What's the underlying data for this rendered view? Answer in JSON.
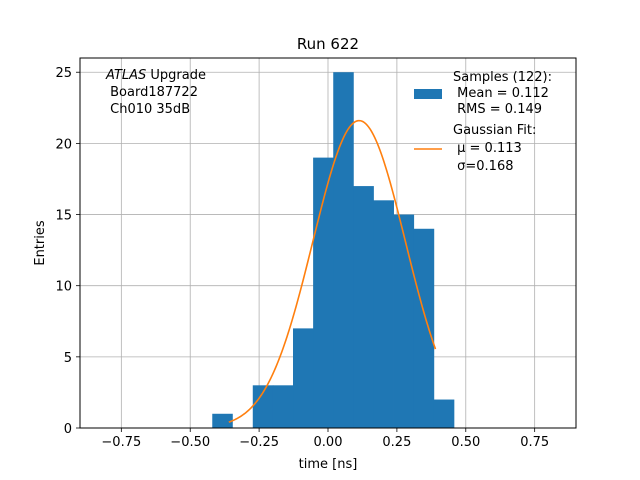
{
  "chart_data": {
    "type": "bar",
    "title": "Run 622",
    "xlabel": "time [ns]",
    "ylabel": "Entries",
    "xlim": [
      -0.9,
      0.9
    ],
    "ylim": [
      0,
      26
    ],
    "grid": true,
    "x_ticks": [
      -0.75,
      -0.5,
      -0.25,
      0.0,
      0.25,
      0.5,
      0.75
    ],
    "x_tick_labels": [
      "−0.75",
      "−0.50",
      "−0.25",
      "0.00",
      "0.25",
      "0.50",
      "0.75"
    ],
    "y_ticks": [
      0,
      5,
      10,
      15,
      20,
      25
    ],
    "y_tick_labels": [
      "0",
      "5",
      "10",
      "15",
      "20",
      "25"
    ],
    "bin_width": 0.073,
    "bins": [
      {
        "left": -0.42,
        "value": 1
      },
      {
        "left": -0.273,
        "value": 3
      },
      {
        "left": -0.2,
        "value": 3
      },
      {
        "left": -0.127,
        "value": 7
      },
      {
        "left": -0.054,
        "value": 19
      },
      {
        "left": 0.019,
        "value": 25
      },
      {
        "left": 0.092,
        "value": 17
      },
      {
        "left": 0.165,
        "value": 16
      },
      {
        "left": 0.238,
        "value": 15
      },
      {
        "left": 0.311,
        "value": 14
      },
      {
        "left": 0.384,
        "value": 2
      }
    ],
    "fit": {
      "amplitude": 21.6,
      "mu": 0.113,
      "sigma": 0.168,
      "x_range": [
        -0.36,
        0.39
      ]
    },
    "colors": {
      "histogram": "#1f77b4",
      "fit": "#ff7f0e",
      "grid": "#b0b0b0"
    },
    "legend_position": "top-right",
    "legend": {
      "samples": [
        "Samples (122):",
        " Mean = 0.112",
        " RMS = 0.149"
      ],
      "fit": [
        "Gaussian Fit:",
        " μ = 0.113",
        " σ=0.168"
      ]
    },
    "annotation": {
      "atlas": "ATLAS",
      "upgrade": " Upgrade",
      "lines": [
        " Board187722",
        " Ch010 35dB"
      ]
    }
  }
}
